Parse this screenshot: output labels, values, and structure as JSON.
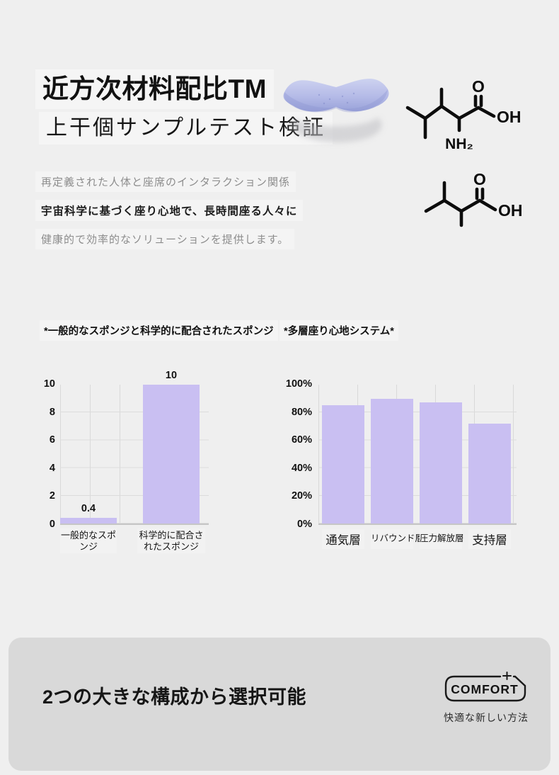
{
  "header": {
    "title": "近方次材料配比TM",
    "subtitle": "上干個サンプルテスト検証",
    "description": [
      {
        "text": "再定義された人体と座席のインタラクション関係"
      },
      {
        "text": "宇宙科学に基づく座り心地で、長時間座る人々に"
      },
      {
        "text": "健康的で効率的なソリューションを提供します。"
      }
    ]
  },
  "molecules": {
    "molecule1": {
      "o": "O",
      "oh": "OH",
      "nh2": "NH₂"
    },
    "molecule2": {
      "o": "O",
      "oh": "OH"
    }
  },
  "chart_data": [
    {
      "type": "bar",
      "title": "*一般的なスポンジと科学的に配合されたスポンジ",
      "categories": [
        "一般的なスポンジ",
        "科学的に配合されたスポンジ"
      ],
      "values": [
        0.4,
        10
      ],
      "value_labels": [
        "0.4",
        "10"
      ],
      "show_values": true,
      "yticks": [
        "10",
        "8",
        "6",
        "4",
        "2",
        "0"
      ],
      "ylim": [
        0,
        10
      ],
      "grid": true,
      "legend": "none",
      "bar_color": "#c9bff2"
    },
    {
      "type": "bar",
      "title": "*多層座り心地システム*",
      "categories": [
        "通気層",
        "リバウンド層",
        "圧力解放層",
        "支持層"
      ],
      "values": [
        85,
        90,
        87,
        72
      ],
      "show_values": false,
      "yticks": [
        "100%",
        "80%",
        "60%",
        "40%",
        "20%",
        "0%"
      ],
      "ylim": [
        0,
        100
      ],
      "grid": true,
      "legend": "none",
      "bar_color": "#c9bff2"
    }
  ],
  "footer": {
    "heading": "2つの大きな構成から選択可能",
    "badge": {
      "label": "COMFORT",
      "plus": "+",
      "caption": "快適な新しい方法"
    }
  },
  "colors": {
    "page_bg": "#efefef",
    "card_bg": "#d9d9d9",
    "bar_purple": "#c9bff2",
    "cushion_purple": "#b4bae7",
    "text_gray": "#8d8d8d"
  }
}
